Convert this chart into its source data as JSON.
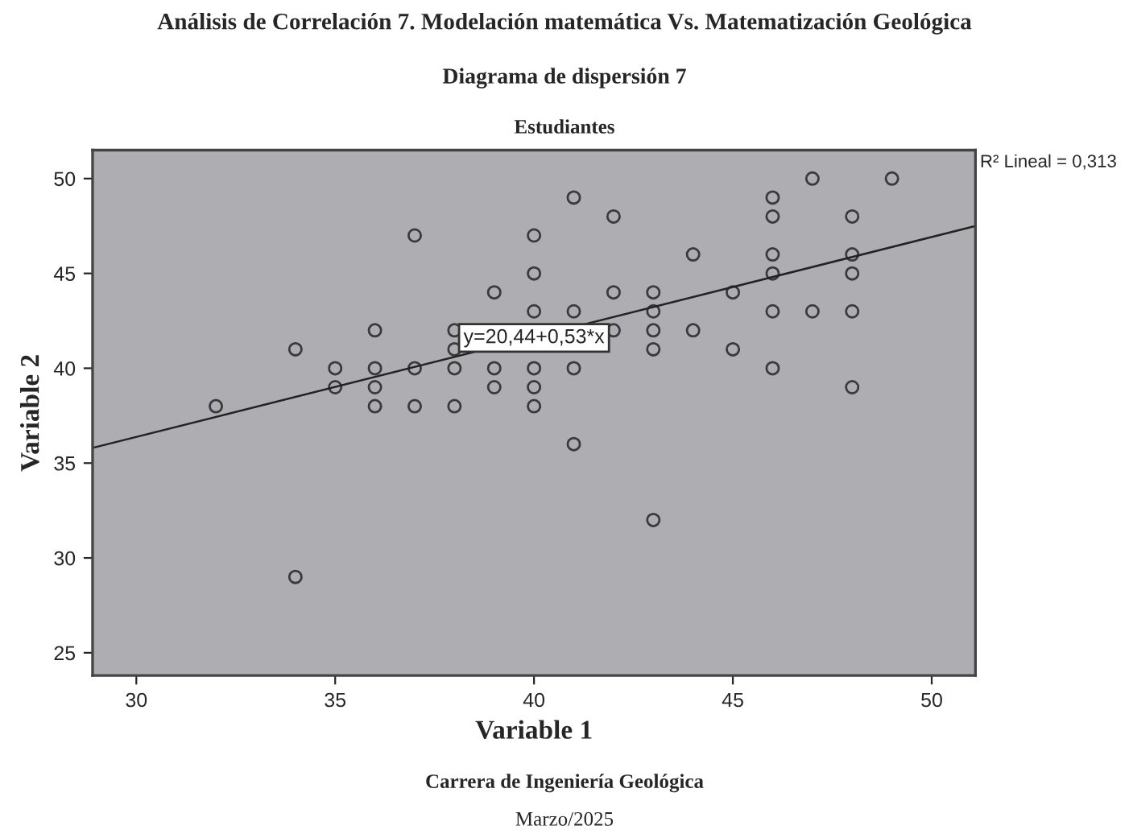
{
  "chart_data": {
    "type": "scatter",
    "title": "Análisis de Correlación 7. Modelación matemática Vs. Matematización Geológica",
    "subtitle": "Diagrama de dispersión 7",
    "xlabel": "Variable 1",
    "ylabel": "Variable 2",
    "xlim": [
      28.9,
      51.1
    ],
    "ylim": [
      23.8,
      51.5
    ],
    "xticks": [
      30,
      35,
      40,
      45,
      50
    ],
    "yticks": [
      25,
      30,
      35,
      40,
      45,
      50
    ],
    "grid": false,
    "series": [
      {
        "color": "#3a3a3a",
        "marker": "circle",
        "x": [
          32,
          34,
          34,
          35,
          35,
          36,
          36,
          36,
          36,
          37,
          37,
          37,
          38,
          38,
          38,
          38,
          39,
          39,
          39,
          40,
          40,
          40,
          40,
          40,
          40,
          41,
          41,
          41,
          41,
          42,
          42,
          42,
          43,
          43,
          43,
          43,
          43,
          44,
          44,
          45,
          45,
          46,
          46,
          46,
          46,
          46,
          46,
          47,
          47,
          48,
          48,
          48,
          48,
          48,
          49
        ],
        "values": [
          38,
          41,
          29,
          40,
          39,
          42,
          40,
          39,
          38,
          47,
          40,
          38,
          42,
          41,
          40,
          38,
          44,
          40,
          39,
          47,
          45,
          43,
          40,
          39,
          38,
          49,
          43,
          40,
          36,
          48,
          44,
          42,
          44,
          43,
          42,
          41,
          32,
          46,
          42,
          44,
          41,
          49,
          48,
          46,
          45,
          43,
          40,
          50,
          43,
          48,
          46,
          45,
          43,
          39,
          50
        ]
      },
      {
        "type": "line",
        "marker": "none",
        "color": "#222222",
        "x": [
          28.9,
          51.1
        ],
        "values": [
          35.8,
          47.5
        ]
      }
    ],
    "annotations": [
      {
        "text": "y=20,44+0,53*x",
        "x": 40,
        "y": 41.6
      },
      "Estudiantes",
      "R² Lineal = 0,313",
      "Carrera de Ingeniería Geológica",
      "Marzo/2025"
    ]
  }
}
